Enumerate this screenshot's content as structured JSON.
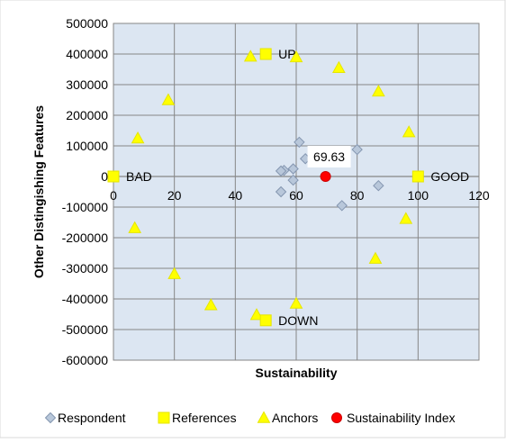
{
  "chart_data": {
    "type": "scatter",
    "title": "",
    "xlabel": "Sustainability",
    "ylabel": "Other Distingishing Features",
    "xlim": [
      0,
      120
    ],
    "ylim": [
      -600000,
      500000
    ],
    "x_ticks": [
      0,
      20,
      40,
      60,
      80,
      100,
      120
    ],
    "y_ticks": [
      500000,
      400000,
      300000,
      200000,
      100000,
      0,
      -100000,
      -200000,
      -300000,
      -400000,
      -500000,
      -600000
    ],
    "grid": true,
    "legend_position": "bottom",
    "series": [
      {
        "name": "Respondent",
        "marker": "diamond",
        "color": "#B8C7DA",
        "stroke": "#8496B0",
        "points": [
          {
            "x": 61,
            "y": 112000
          },
          {
            "x": 63,
            "y": 58000
          },
          {
            "x": 59,
            "y": 25000
          },
          {
            "x": 56,
            "y": 20000
          },
          {
            "x": 55,
            "y": 18000
          },
          {
            "x": 59,
            "y": -12000
          },
          {
            "x": 55,
            "y": -50000
          },
          {
            "x": 75,
            "y": -95000
          },
          {
            "x": 87,
            "y": -30000
          },
          {
            "x": 80,
            "y": 88000
          }
        ]
      },
      {
        "name": "References",
        "marker": "square",
        "color": "#FFFF00",
        "stroke": "#E6E600",
        "points": [
          {
            "x": 0,
            "y": 0,
            "label": "BAD"
          },
          {
            "x": 100,
            "y": 0,
            "label": "GOOD"
          },
          {
            "x": 50,
            "y": 400000,
            "label": "UP"
          },
          {
            "x": 50,
            "y": -470000,
            "label": "DOWN"
          }
        ]
      },
      {
        "name": "Anchors",
        "marker": "triangle",
        "color": "#FFFF00",
        "stroke": "#E6E600",
        "points": [
          {
            "x": 45,
            "y": 392000
          },
          {
            "x": 60,
            "y": 390000
          },
          {
            "x": 74,
            "y": 355000
          },
          {
            "x": 87,
            "y": 278000
          },
          {
            "x": 18,
            "y": 250000
          },
          {
            "x": 97,
            "y": 145000
          },
          {
            "x": 8,
            "y": 125000
          },
          {
            "x": 96,
            "y": -138000
          },
          {
            "x": 7,
            "y": -168000
          },
          {
            "x": 86,
            "y": -268000
          },
          {
            "x": 20,
            "y": -318000
          },
          {
            "x": 32,
            "y": -420000
          },
          {
            "x": 60,
            "y": -415000
          },
          {
            "x": 47,
            "y": -452000
          }
        ]
      },
      {
        "name": "Sustainability Index",
        "marker": "circle",
        "color": "#FF0000",
        "stroke": "#CC0000",
        "points": [
          {
            "x": 69.63,
            "y": 0,
            "label": "69.63"
          }
        ]
      }
    ]
  }
}
